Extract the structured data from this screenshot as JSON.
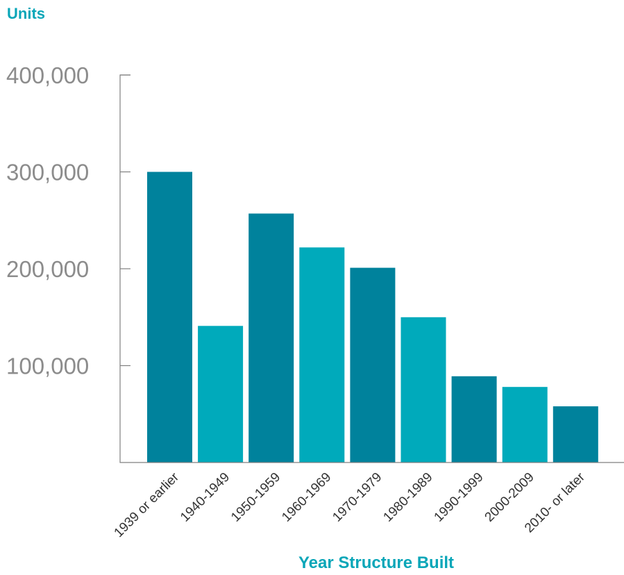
{
  "chart_data": {
    "type": "bar",
    "title": "",
    "ylabel": "Units",
    "xlabel": "Year Structure Built",
    "ylim": [
      0,
      400000
    ],
    "yticks": [
      100000,
      200000,
      300000,
      400000
    ],
    "ytick_labels": [
      "100,000",
      "200,000",
      "300,000",
      "400,000"
    ],
    "categories": [
      "1939 or earlier",
      "1940-1949",
      "1950-1959",
      "1960-1969",
      "1970-1979",
      "1980-1989",
      "1990-1999",
      "2000-2009",
      "2010- or later"
    ],
    "values": [
      300000,
      141000,
      257000,
      222000,
      201000,
      150000,
      89000,
      78000,
      58000
    ],
    "colors": [
      "#00829c",
      "#00aabb",
      "#00829c",
      "#00aabb",
      "#00829c",
      "#00aabb",
      "#00829c",
      "#00aabb",
      "#00829c"
    ],
    "grid": false
  }
}
